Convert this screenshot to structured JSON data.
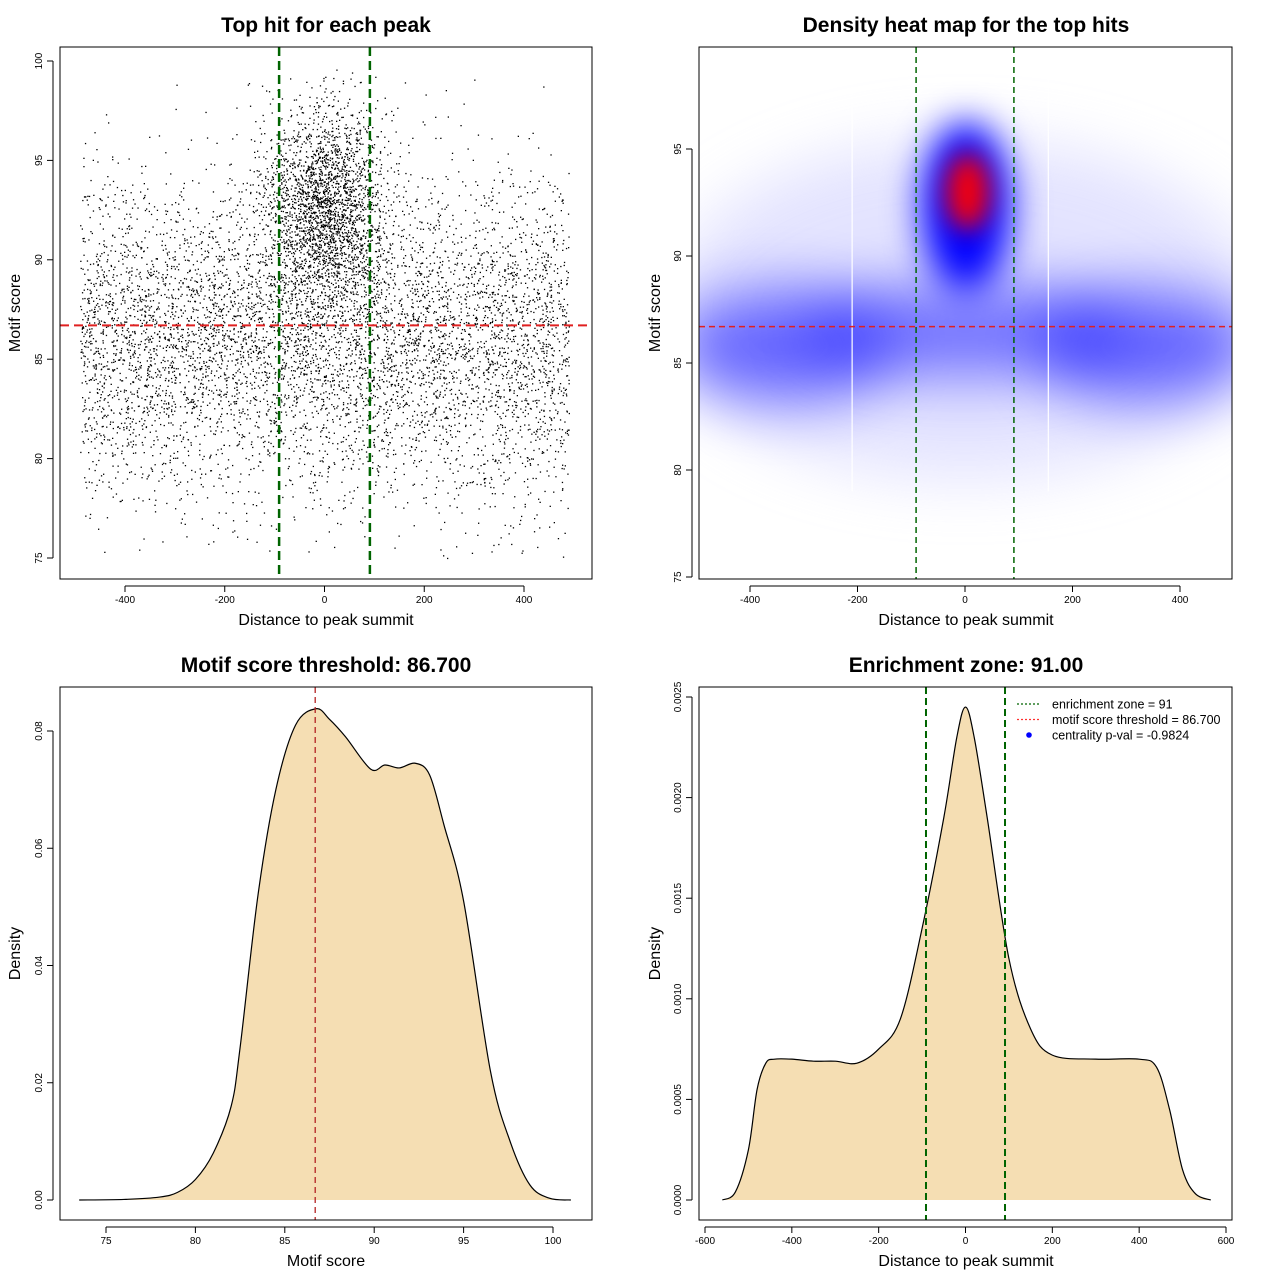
{
  "chart_data": [
    {
      "type": "scatter",
      "title": "Top hit for each peak",
      "xlabel": "Distance to peak summit",
      "ylabel": "Motif score",
      "xticks": [
        -400,
        -200,
        0,
        200,
        400
      ],
      "yticks": [
        75,
        80,
        85,
        90,
        95,
        100
      ],
      "xlim": [
        -530,
        535
      ],
      "ylim": [
        74.3,
        100.7
      ],
      "vlines": [
        -91,
        91
      ],
      "hline": 86.7,
      "points_summary": {
        "n": 9000,
        "background": {
          "fraction": 0.72,
          "x_uniform": [
            -490,
            490
          ],
          "y_mean": 86,
          "y_sd": 4
        },
        "central": {
          "fraction": 0.28,
          "x_mean": 0,
          "x_sd": 60,
          "y_mean": 92.5,
          "y_sd": 2.6
        }
      },
      "colors": {
        "points": "#000000",
        "vlines": "#006400",
        "hline": "#e02020"
      }
    },
    {
      "type": "heatmap",
      "title": "Density heat map for the top hits",
      "xlabel": "Distance to peak summit",
      "ylabel": "Motif score",
      "xticks": [
        -400,
        -200,
        0,
        200,
        400
      ],
      "yticks": [
        75,
        80,
        85,
        90,
        95
      ],
      "xlim": [
        -495,
        497
      ],
      "ylim": [
        74.9,
        99.8
      ],
      "vlines": [
        -91,
        91
      ],
      "hline": 86.7,
      "hotspot": {
        "x": 5,
        "y": 93
      },
      "colors": {
        "low": "#ffffff",
        "mid": "#0000ff",
        "high": "#ff0000"
      }
    },
    {
      "type": "area",
      "title": "Motif score threshold: 86.700",
      "xlabel": "Motif score",
      "ylabel": "Density",
      "xticks": [
        75,
        80,
        85,
        90,
        95,
        100
      ],
      "yticks": [
        0.0,
        0.02,
        0.04,
        0.06,
        0.08
      ],
      "ytick_labels": [
        "0.00",
        "0.02",
        "0.04",
        "0.06",
        "0.08"
      ],
      "vline": 86.7,
      "x": [
        73.5,
        76,
        78,
        79,
        80,
        81,
        82,
        82.5,
        83.5,
        84.5,
        85.6,
        86.75,
        87.5,
        88.4,
        89.8,
        90.6,
        91.4,
        92.3,
        93.1,
        93.9,
        95.0,
        96.5,
        97.6,
        98.7,
        99.8,
        101
      ],
      "y": [
        0,
        0.0001,
        0.0005,
        0.0013,
        0.0035,
        0.008,
        0.016,
        0.026,
        0.052,
        0.07,
        0.081,
        0.0838,
        0.082,
        0.079,
        0.0735,
        0.0742,
        0.0737,
        0.0745,
        0.0725,
        0.064,
        0.051,
        0.022,
        0.01,
        0.0026,
        0.0003,
        0
      ],
      "colors": {
        "fill": "#f5deb3",
        "line": "#000000",
        "vline": "#b22222"
      }
    },
    {
      "type": "area",
      "title": "Enrichment zone: 91.00",
      "xlabel": "Distance to peak summit",
      "ylabel": "Density",
      "xticks": [
        -600,
        -400,
        -200,
        0,
        200,
        400,
        600
      ],
      "yticks": [
        0,
        0.0005,
        0.001,
        0.0015,
        0.002,
        0.0025
      ],
      "ytick_labels": [
        "0.0000",
        "0.0005",
        "0.0010",
        "0.0015",
        "0.0020",
        "0.0025"
      ],
      "vlines": [
        -91,
        91
      ],
      "x": [
        -560,
        -530,
        -500,
        -480,
        -460,
        -440,
        -400,
        -350,
        -300,
        -250,
        -200,
        -150,
        -100,
        -50,
        -20,
        0,
        20,
        50,
        100,
        150,
        200,
        300,
        400,
        440,
        470,
        500,
        530,
        565
      ],
      "y": [
        0,
        4e-05,
        0.00025,
        0.00055,
        0.00068,
        0.0007,
        0.0007,
        0.00069,
        0.00069,
        0.00068,
        0.00075,
        0.0009,
        0.00135,
        0.0019,
        0.0023,
        0.00245,
        0.0023,
        0.0019,
        0.0012,
        0.00085,
        0.00072,
        0.0007,
        0.0007,
        0.00066,
        0.00045,
        0.00015,
        3e-05,
        0
      ],
      "legend": {
        "placement": "top-right",
        "items": [
          {
            "label": "enrichment zone = 91",
            "symbol": "dotted-line",
            "color": "#006400"
          },
          {
            "label": "motif score threshold = 86.700",
            "symbol": "dotted-line",
            "color": "#ff3030"
          },
          {
            "label": "centrality p-val = -0.9824",
            "symbol": "dot",
            "color": "#0000ff"
          }
        ]
      },
      "colors": {
        "fill": "#f5deb3",
        "line": "#000000",
        "vlines": "#006400"
      }
    }
  ]
}
